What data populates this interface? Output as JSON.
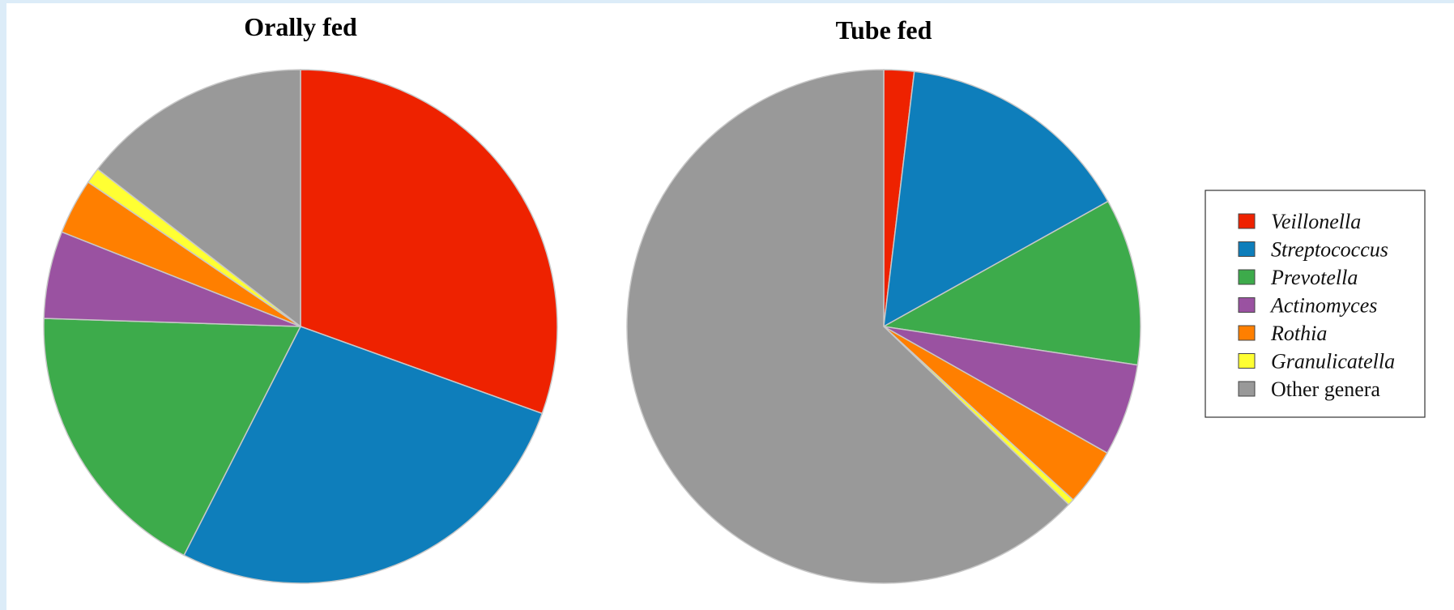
{
  "chart_data": [
    {
      "type": "pie",
      "title": "Orally fed",
      "categories": [
        "Veillonella",
        "Streptococcus",
        "Prevotella",
        "Actinomyces",
        "Rothia",
        "Granulicatella",
        "Other genera"
      ],
      "values": [
        30.5,
        27.0,
        18.0,
        5.5,
        3.5,
        1.0,
        14.5
      ]
    },
    {
      "type": "pie",
      "title": "Tube fed",
      "categories": [
        "Veillonella",
        "Streptococcus",
        "Prevotella",
        "Actinomyces",
        "Rothia",
        "Granulicatella",
        "Other genera"
      ],
      "values": [
        1.9,
        15.0,
        10.5,
        5.8,
        3.6,
        0.4,
        62.8
      ]
    }
  ],
  "legend": {
    "position": "right",
    "items": [
      {
        "label": "Veillonella",
        "color": "#ee2200",
        "italic": true
      },
      {
        "label": "Streptococcus",
        "color": "#0e7ebb",
        "italic": true
      },
      {
        "label": "Prevotella",
        "color": "#3dab4b",
        "italic": true
      },
      {
        "label": "Actinomyces",
        "color": "#9a52a1",
        "italic": true
      },
      {
        "label": "Rothia",
        "color": "#ff7f00",
        "italic": true
      },
      {
        "label": "Granulicatella",
        "color": "#ffff33",
        "italic": true
      },
      {
        "label": "Other genera",
        "color": "#999999",
        "italic": false
      }
    ]
  }
}
